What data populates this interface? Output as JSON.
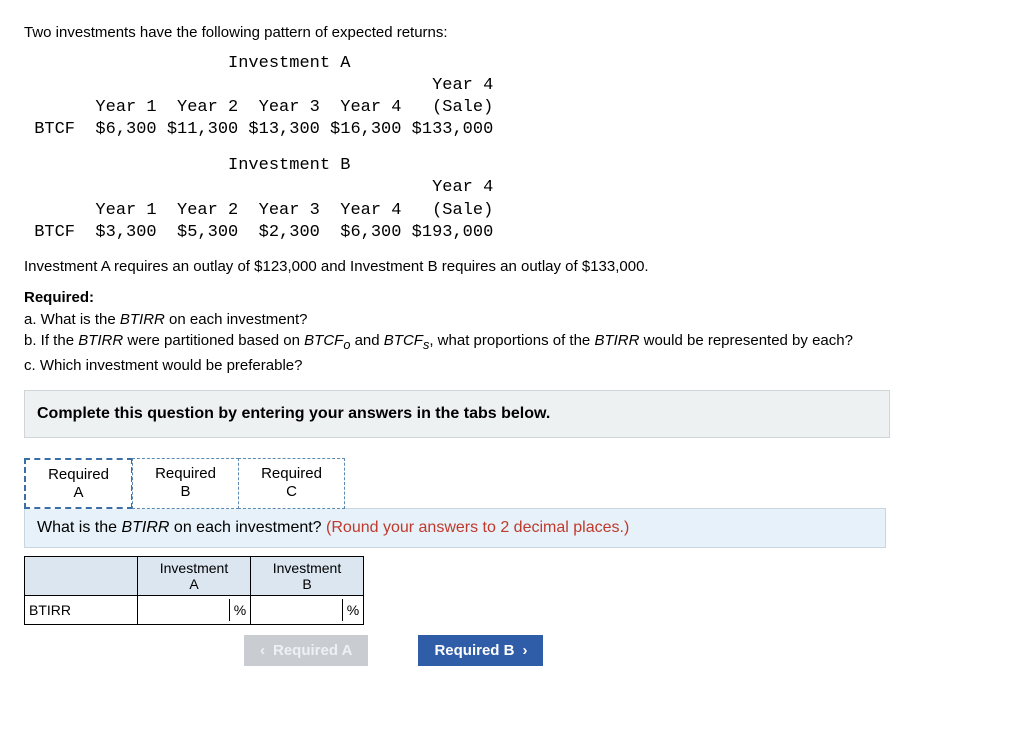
{
  "intro": "Two investments have the following pattern of expected returns:",
  "tableA": {
    "title": "Investment A",
    "headers": [
      "",
      "Year 1",
      "Year 2",
      "Year 3",
      "Year 4",
      "Year 4\n(Sale)"
    ],
    "rowlabel": "BTCF",
    "values": [
      "$6,300",
      "$11,300",
      "$13,300",
      "$16,300",
      "$133,000"
    ]
  },
  "tableB": {
    "title": "Investment B",
    "headers": [
      "",
      "Year 1",
      "Year 2",
      "Year 3",
      "Year 4",
      "Year 4\n(Sale)"
    ],
    "rowlabel": "BTCF",
    "values": [
      "$3,300",
      "$5,300",
      "$2,300",
      "$6,300",
      "$193,000"
    ]
  },
  "outlay": "Investment A requires an outlay of $123,000 and Investment B requires an outlay of $133,000.",
  "required_label": "Required:",
  "req_a_prefix": "a. What is the ",
  "req_a_italic": "BTIRR",
  "req_a_suffix": " on each investment?",
  "req_b_1": "b. If the ",
  "req_b_it1": "BTIRR",
  "req_b_2": " were partitioned based on ",
  "req_b_it2": "BTCF",
  "req_b_sub1": "o",
  "req_b_3": " and ",
  "req_b_it3": "BTCF",
  "req_b_sub2": "s",
  "req_b_4": ", what proportions of the ",
  "req_b_it4": "BTIRR",
  "req_b_5": " would be represented by each?",
  "req_c": "c. Which investment would be preferable?",
  "instruction": "Complete this question by entering your answers in the tabs below.",
  "tabs": {
    "a": "Required\nA",
    "b": "Required\nB",
    "c": "Required\nC"
  },
  "question_main": "What is the ",
  "question_it": "BTIRR",
  "question_rest": " on each investment? ",
  "question_hint": "(Round your answers to 2 decimal places.)",
  "ans_headers": {
    "blank": "",
    "a": "Investment\nA",
    "b": "Investment\nB"
  },
  "ans_rowlabel": "BTIRR",
  "unit": "%",
  "nav": {
    "prev": "Required A",
    "next": "Required B"
  },
  "colors": {
    "hint": "#c0392b",
    "tab_border": "#5b89b3",
    "qbar_bg": "#e6f1f9",
    "instr_bg": "#eef1f2",
    "hdr_bg": "#dbe6f1",
    "nav_enabled": "#2f5da8",
    "nav_disabled": "#c9ccd1"
  }
}
